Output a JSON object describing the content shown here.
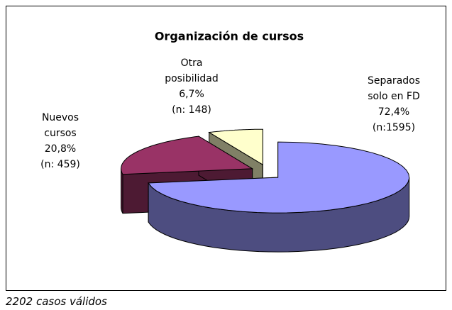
{
  "chart_data": {
    "type": "pie3d",
    "title": "Organización de cursos",
    "categories": [
      "Separados solo en FD",
      "Nuevos cursos",
      "Otra posibilidad"
    ],
    "values": [
      72.4,
      20.8,
      6.7
    ],
    "value_labels": [
      "72,4%",
      "20,8%",
      "6,7%"
    ],
    "count_labels": [
      "(n:1595)",
      "(n: 459)",
      "(n: 148)"
    ],
    "colors": [
      "#9999ff",
      "#993366",
      "#ffffcc"
    ],
    "footnote": "2202 casos válidos"
  }
}
